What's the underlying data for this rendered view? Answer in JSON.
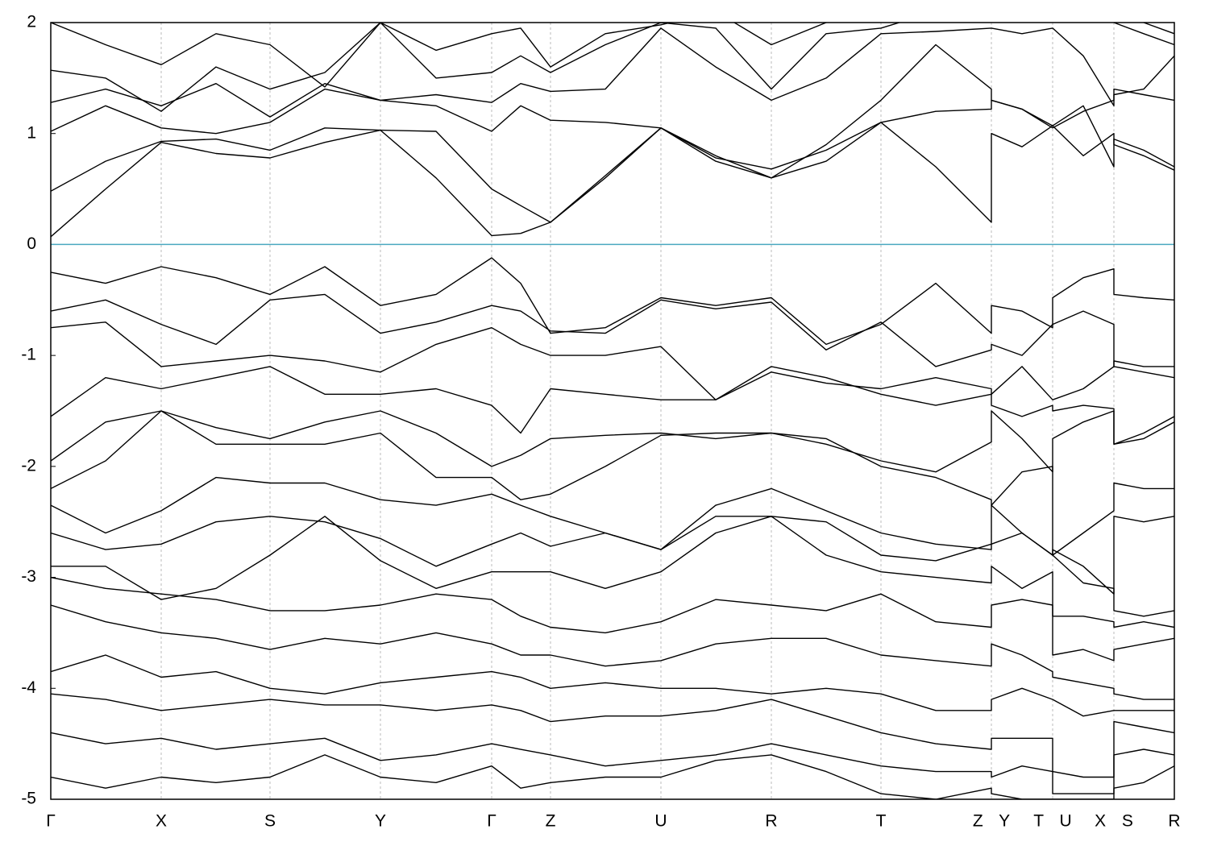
{
  "chart_data": {
    "type": "line",
    "x": [
      0,
      68,
      137,
      205,
      272,
      340,
      409,
      478,
      547,
      583,
      620,
      688,
      757,
      825,
      894,
      962,
      1030,
      1098,
      1167,
      1167,
      1205,
      1243,
      1243,
      1281,
      1319,
      1319,
      1356,
      1394
    ],
    "xlim": [
      0,
      1394
    ],
    "xticks": [
      {
        "value": 0,
        "label": "Γ"
      },
      {
        "value": 137,
        "label": "X"
      },
      {
        "value": 272,
        "label": "S"
      },
      {
        "value": 409,
        "label": "Y"
      },
      {
        "value": 547,
        "label": "Γ"
      },
      {
        "value": 620,
        "label": "Z"
      },
      {
        "value": 757,
        "label": "U"
      },
      {
        "value": 894,
        "label": "R"
      },
      {
        "value": 1030,
        "label": "T"
      },
      {
        "value": 1167,
        "label": "Z Y"
      },
      {
        "value": 1243,
        "label": "T U"
      },
      {
        "value": 1319,
        "label": "X S"
      },
      {
        "value": 1394,
        "label": "R"
      }
    ],
    "ylim": [
      -5,
      2
    ],
    "yticks": [
      -5,
      -4,
      -3,
      -2,
      -1,
      0,
      1,
      2
    ],
    "grid": "x-dotted",
    "reference_line": {
      "value": 0,
      "color": "#4aa8c0"
    },
    "series": [
      {
        "color": "#000000",
        "values": [
          0.07,
          0.5,
          0.92,
          0.82,
          0.78,
          0.92,
          1.03,
          0.6,
          0.08,
          0.1,
          0.2,
          0.6,
          1.05,
          0.8,
          0.6,
          0.75,
          1.1,
          0.7,
          0.2,
          1.0,
          0.88,
          1.07,
          1.07,
          0.8,
          1.0,
          0.9,
          0.8,
          0.67
        ]
      },
      {
        "color": "#000000",
        "values": [
          0.48,
          0.75,
          0.93,
          0.95,
          0.85,
          1.05,
          1.03,
          1.02,
          0.5,
          0.35,
          0.2,
          0.62,
          1.05,
          0.78,
          0.68,
          0.85,
          1.1,
          1.2,
          1.22,
          1.3,
          1.22,
          1.07,
          1.07,
          1.25,
          0.7,
          0.95,
          0.85,
          0.7
        ]
      },
      {
        "color": "#000000",
        "values": [
          1.02,
          1.25,
          1.05,
          1.0,
          1.1,
          1.4,
          1.3,
          1.25,
          1.02,
          1.25,
          1.12,
          1.1,
          1.05,
          0.75,
          0.6,
          0.9,
          1.3,
          1.8,
          1.4,
          1.3,
          1.22,
          1.05,
          1.05,
          1.2,
          1.3,
          1.4,
          1.35,
          1.3
        ]
      },
      {
        "color": "#000000",
        "values": [
          1.28,
          1.4,
          1.25,
          1.45,
          1.15,
          1.45,
          1.3,
          1.35,
          1.28,
          1.45,
          1.38,
          1.4,
          1.95,
          1.6,
          1.3,
          1.5,
          1.9,
          1.92,
          1.95,
          1.95,
          1.9,
          1.95,
          1.95,
          1.7,
          1.25,
          1.35,
          1.4,
          1.7
        ]
      },
      {
        "color": "#000000",
        "values": [
          1.57,
          1.5,
          1.2,
          1.6,
          1.4,
          1.55,
          2.0,
          1.5,
          1.55,
          1.7,
          1.55,
          1.8,
          2.0,
          1.95,
          1.4,
          1.9,
          1.95,
          2.1,
          2.1,
          2.1,
          2.1,
          2.1,
          2.1,
          2.1,
          2.1,
          2.0,
          1.9,
          1.8
        ]
      },
      {
        "color": "#000000",
        "values": [
          2.0,
          1.8,
          1.62,
          1.9,
          1.8,
          1.42,
          2.0,
          1.75,
          1.9,
          1.95,
          1.6,
          1.9,
          1.98,
          2.1,
          1.8,
          2.0,
          2.1,
          2.1,
          2.1,
          2.1,
          2.1,
          2.1,
          2.1,
          2.1,
          2.1,
          2.1,
          2.0,
          1.9
        ]
      },
      {
        "color": "#000000",
        "values": [
          -0.25,
          -0.35,
          -0.2,
          -0.3,
          -0.45,
          -0.2,
          -0.55,
          -0.45,
          -0.12,
          -0.35,
          -0.8,
          -0.75,
          -0.48,
          -0.55,
          -0.48,
          -0.9,
          -0.72,
          -0.35,
          -0.8,
          -0.55,
          -0.6,
          -0.75,
          -0.48,
          -0.3,
          -0.22,
          -0.45,
          -0.48,
          -0.5
        ]
      },
      {
        "color": "#000000",
        "values": [
          -0.6,
          -0.5,
          -0.72,
          -0.9,
          -0.5,
          -0.45,
          -0.8,
          -0.7,
          -0.55,
          -0.6,
          -0.78,
          -0.8,
          -0.5,
          -0.58,
          -0.52,
          -0.95,
          -0.7,
          -1.1,
          -0.95,
          -0.9,
          -1.0,
          -0.72,
          -0.72,
          -0.6,
          -0.72,
          -1.1,
          -1.15,
          -1.2
        ]
      },
      {
        "color": "#000000",
        "values": [
          -0.75,
          -0.7,
          -1.1,
          -1.05,
          -1.0,
          -1.05,
          -1.15,
          -0.9,
          -0.75,
          -0.9,
          -1.0,
          -1.0,
          -0.92,
          -1.4,
          -1.15,
          -1.25,
          -1.3,
          -1.2,
          -1.3,
          -1.35,
          -1.1,
          -1.4,
          -1.4,
          -1.3,
          -1.1,
          -1.05,
          -1.1,
          -1.1
        ]
      },
      {
        "color": "#000000",
        "values": [
          -1.55,
          -1.2,
          -1.3,
          -1.2,
          -1.1,
          -1.35,
          -1.35,
          -1.3,
          -1.45,
          -1.7,
          -1.3,
          -1.35,
          -1.4,
          -1.4,
          -1.1,
          -1.2,
          -1.35,
          -1.45,
          -1.35,
          -1.45,
          -1.55,
          -1.45,
          -1.5,
          -1.45,
          -1.48,
          -1.8,
          -1.7,
          -1.55
        ]
      },
      {
        "color": "#000000",
        "values": [
          -1.95,
          -1.6,
          -1.5,
          -1.65,
          -1.75,
          -1.6,
          -1.5,
          -1.7,
          -2.0,
          -1.9,
          -1.75,
          -1.72,
          -1.7,
          -1.75,
          -1.7,
          -1.8,
          -1.95,
          -2.05,
          -1.78,
          -1.5,
          -1.75,
          -2.05,
          -1.75,
          -1.6,
          -1.5,
          -1.8,
          -1.75,
          -1.6
        ]
      },
      {
        "color": "#000000",
        "values": [
          -2.2,
          -1.95,
          -1.5,
          -1.8,
          -1.8,
          -1.8,
          -1.7,
          -2.1,
          -2.1,
          -2.3,
          -2.25,
          -2.0,
          -1.72,
          -1.7,
          -1.7,
          -1.75,
          -2.0,
          -2.1,
          -2.3,
          -2.35,
          -2.05,
          -2.0,
          -2.8,
          -2.6,
          -2.4,
          -2.15,
          -2.2,
          -2.2
        ]
      },
      {
        "color": "#000000",
        "values": [
          -2.35,
          -2.6,
          -2.4,
          -2.1,
          -2.15,
          -2.15,
          -2.3,
          -2.35,
          -2.25,
          -2.35,
          -2.45,
          -2.6,
          -2.75,
          -2.35,
          -2.2,
          -2.4,
          -2.6,
          -2.7,
          -2.75,
          -2.35,
          -2.6,
          -2.8,
          -2.75,
          -2.9,
          -3.15,
          -2.45,
          -2.5,
          -2.45
        ]
      },
      {
        "color": "#000000",
        "values": [
          -2.6,
          -2.75,
          -2.7,
          -2.5,
          -2.45,
          -2.5,
          -2.65,
          -2.9,
          -2.7,
          -2.6,
          -2.72,
          -2.6,
          -2.75,
          -2.45,
          -2.45,
          -2.5,
          -2.8,
          -2.85,
          -2.7,
          -2.7,
          -2.6,
          -2.8,
          -2.8,
          -3.05,
          -3.1,
          -3.3,
          -3.35,
          -3.3
        ]
      },
      {
        "color": "#000000",
        "values": [
          -2.9,
          -2.9,
          -3.2,
          -3.1,
          -2.8,
          -2.45,
          -2.85,
          -3.1,
          -2.95,
          -2.95,
          -2.95,
          -3.1,
          -2.95,
          -2.6,
          -2.45,
          -2.8,
          -2.95,
          -3.0,
          -3.05,
          -2.9,
          -3.1,
          -2.95,
          -3.35,
          -3.35,
          -3.4,
          -3.45,
          -3.4,
          -3.45
        ]
      },
      {
        "color": "#000000",
        "values": [
          -3.0,
          -3.1,
          -3.15,
          -3.2,
          -3.3,
          -3.3,
          -3.25,
          -3.15,
          -3.2,
          -3.35,
          -3.45,
          -3.5,
          -3.4,
          -3.2,
          -3.25,
          -3.3,
          -3.15,
          -3.4,
          -3.45,
          -3.25,
          -3.2,
          -3.25,
          -3.7,
          -3.65,
          -3.75,
          -3.65,
          -3.6,
          -3.55
        ]
      },
      {
        "color": "#000000",
        "values": [
          -3.25,
          -3.4,
          -3.5,
          -3.55,
          -3.65,
          -3.55,
          -3.6,
          -3.5,
          -3.6,
          -3.7,
          -3.7,
          -3.8,
          -3.75,
          -3.6,
          -3.55,
          -3.55,
          -3.7,
          -3.75,
          -3.8,
          -3.6,
          -3.7,
          -3.85,
          -3.9,
          -3.95,
          -4.0,
          -4.05,
          -4.1,
          -4.1
        ]
      },
      {
        "color": "#000000",
        "values": [
          -3.85,
          -3.7,
          -3.9,
          -3.85,
          -4.0,
          -4.05,
          -3.95,
          -3.9,
          -3.85,
          -3.9,
          -4.0,
          -3.95,
          -4.0,
          -4.0,
          -4.05,
          -4.0,
          -4.05,
          -4.2,
          -4.2,
          -4.1,
          -4.0,
          -4.1,
          -4.1,
          -4.25,
          -4.2,
          -4.2,
          -4.2,
          -4.2
        ]
      },
      {
        "color": "#000000",
        "values": [
          -4.05,
          -4.1,
          -4.2,
          -4.15,
          -4.1,
          -4.15,
          -4.15,
          -4.2,
          -4.15,
          -4.2,
          -4.3,
          -4.25,
          -4.25,
          -4.2,
          -4.1,
          -4.25,
          -4.4,
          -4.5,
          -4.55,
          -4.45,
          -4.45,
          -4.45,
          -4.75,
          -4.8,
          -4.8,
          -4.3,
          -4.35,
          -4.4
        ]
      },
      {
        "color": "#000000",
        "values": [
          -4.4,
          -4.5,
          -4.45,
          -4.55,
          -4.5,
          -4.45,
          -4.65,
          -4.6,
          -4.5,
          -4.55,
          -4.6,
          -4.7,
          -4.65,
          -4.6,
          -4.5,
          -4.6,
          -4.7,
          -4.75,
          -4.75,
          -4.8,
          -4.7,
          -4.75,
          -4.95,
          -4.95,
          -4.95,
          -4.6,
          -4.55,
          -4.6
        ]
      },
      {
        "color": "#000000",
        "values": [
          -4.8,
          -4.9,
          -4.8,
          -4.85,
          -4.8,
          -4.6,
          -4.8,
          -4.85,
          -4.7,
          -4.9,
          -4.85,
          -4.8,
          -4.8,
          -4.65,
          -4.6,
          -4.75,
          -4.95,
          -5.0,
          -4.9,
          -4.95,
          -5.0,
          -5.0,
          -5.0,
          -5.0,
          -5.0,
          -4.9,
          -4.85,
          -4.7
        ]
      }
    ]
  }
}
